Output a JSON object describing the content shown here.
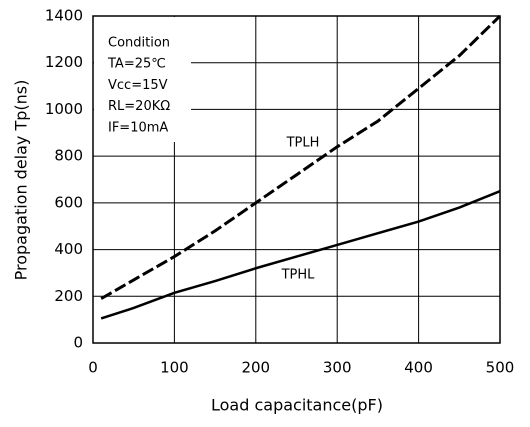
{
  "chart_data": {
    "type": "line",
    "x_label": "Load capacitance(pF)",
    "y_label": "Propagation delay Tp(ns)",
    "annotations": [
      "Condition",
      "TA=25℃",
      "Vcc=15V",
      "RL=20KΩ",
      "IF=10mA"
    ],
    "x": [
      10,
      50,
      100,
      150,
      200,
      250,
      300,
      350,
      400,
      450,
      500
    ],
    "series": [
      {
        "name": "TPLH",
        "color": "#000000",
        "dashed": true,
        "values": [
          190,
          270,
          370,
          480,
          600,
          720,
          840,
          950,
          1090,
          1230,
          1400
        ]
      },
      {
        "name": "TPHL",
        "color": "#000000",
        "dashed": false,
        "values": [
          105,
          150,
          215,
          265,
          320,
          370,
          420,
          470,
          520,
          580,
          650
        ]
      }
    ],
    "xlim": [
      0,
      500
    ],
    "xticks": [
      0,
      100,
      200,
      300,
      400,
      500
    ],
    "ylim": [
      0,
      1400
    ],
    "yticks": [
      0,
      200,
      400,
      600,
      800,
      1000,
      1200,
      1400
    ],
    "grid": true
  }
}
